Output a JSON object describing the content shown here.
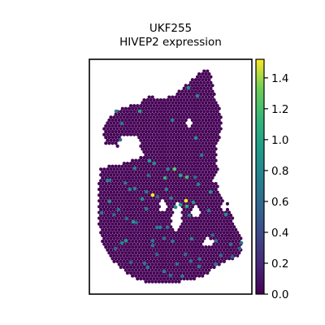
{
  "chart_data": {
    "type": "scatter",
    "title_lines": [
      "UKF255",
      "HIVEP2 expression"
    ],
    "xlabel": "",
    "ylabel": "",
    "grid": false,
    "colormap": "viridis",
    "colorbar": {
      "vmin": 0.0,
      "vmax": 1.52,
      "ticks": [
        0.0,
        0.2,
        0.4,
        0.6,
        0.8,
        1.0,
        1.2,
        1.4
      ],
      "tick_labels": [
        "0.0",
        "0.2",
        "0.4",
        "0.6",
        "0.8",
        "1.0",
        "1.2",
        "1.4"
      ]
    },
    "series": [
      {
        "x": [
          150,
          143,
          148,
          184,
          215,
          243,
          172,
          155,
          188,
          194,
          135,
          207,
          212,
          232,
          241,
          222,
          248,
          160,
          203,
          230,
          244,
          259,
          238,
          211,
          166,
          125,
          135,
          146,
          180,
          202,
          168,
          188,
          142,
          229,
          205,
          230,
          257,
          164,
          197,
          222,
          233,
          278,
          213,
          236,
          266,
          150,
          132,
          154,
          166,
          183,
          190,
          240,
          180,
          193,
          206,
          216,
          175,
          140,
          188,
          228,
          272,
          246,
          161,
          178,
          182,
          202,
          210,
          224,
          265,
          286,
          156,
          193,
          235,
          245,
          218,
          284,
          297,
          262,
          295
        ],
        "y": [
          152,
          137,
          172,
          198,
          208,
          118,
          137,
          296,
          240,
          242,
          222,
          208,
          148,
          108,
          170,
          216,
          191,
          233,
          219,
          218,
          227,
          236,
          249,
          244,
          232,
          262,
          248,
          258,
          257,
          293,
          274,
          296,
          306,
          247,
          233,
          254,
          259,
          273,
          280,
          252,
          265,
          264,
          297,
          294,
          296,
          299,
          222,
          225,
          207,
          216,
          201,
          218,
          236,
          280,
          280,
          255,
          245,
          264,
          302,
          313,
          314,
          319,
          323,
          324,
          329,
          334,
          339,
          340,
          325,
          316,
          269,
          313,
          321,
          328,
          325,
          301,
          299,
          289,
          306
        ],
        "values": [
          0.75,
          0.75,
          0.6,
          0.95,
          1.25,
          0.8,
          1.0,
          0.9,
          1.5,
          0.55,
          0.65,
          0.75,
          0.7,
          0.85,
          0.85,
          1.0,
          0.7,
          0.75,
          1.1,
          1.2,
          0.8,
          0.85,
          0.9,
          0.7,
          0.8,
          0.7,
          0.8,
          0.7,
          0.75,
          0.6,
          0.55,
          0.7,
          0.6,
          1.55,
          0.75,
          1.05,
          0.7,
          0.95,
          0.75,
          1.0,
          0.8,
          0.85,
          0.65,
          0.8,
          0.6,
          0.8,
          0.7,
          0.65,
          0.75,
          0.6,
          0.8,
          0.6,
          0.7,
          0.7,
          0.6,
          0.8,
          0.85,
          0.55,
          0.65,
          0.6,
          0.55,
          0.6,
          0.55,
          0.7,
          0.65,
          0.75,
          0.6,
          0.65,
          0.6,
          0.55,
          0.6,
          0.55,
          0.6,
          0.7,
          0.65,
          0.6,
          0.65,
          0.55,
          0.55
        ],
        "background_value": 0.0
      }
    ]
  }
}
